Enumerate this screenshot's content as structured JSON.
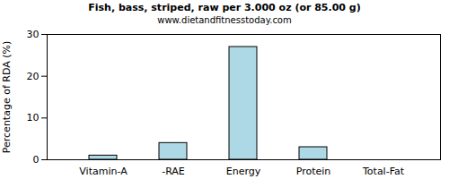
{
  "chart_data": {
    "type": "bar",
    "title": "Fish, bass, striped, raw per 3.000 oz (or 85.00 g)",
    "subtitle": "www.dietandfitnesstoday.com",
    "y_label": "Percentage of RDA (%)",
    "categories": [
      "Vitamin-A",
      "-RAE",
      "Energy",
      "Protein",
      "Total-Fat"
    ],
    "values": [
      1,
      4,
      27,
      3,
      0
    ],
    "color": "#add8e6",
    "ylim": [
      0,
      30
    ],
    "yticks": [
      0,
      10,
      20,
      30
    ],
    "grid": false
  }
}
